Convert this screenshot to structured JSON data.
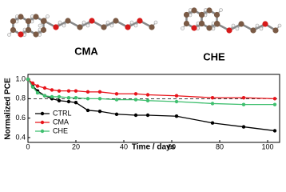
{
  "chart_data": {
    "type": "line",
    "x": [
      0,
      2,
      4,
      7,
      10,
      13,
      17,
      20,
      25,
      30,
      37,
      45,
      50,
      62,
      77,
      90,
      103
    ],
    "series": [
      {
        "name": "CTRL",
        "color": "#000000",
        "values": [
          1.0,
          0.93,
          0.88,
          0.83,
          0.8,
          0.78,
          0.77,
          0.76,
          0.68,
          0.67,
          0.64,
          0.63,
          0.63,
          0.62,
          0.55,
          0.51,
          0.47
        ]
      },
      {
        "name": "CMA",
        "color": "#e8141b",
        "values": [
          1.0,
          0.96,
          0.93,
          0.91,
          0.89,
          0.88,
          0.88,
          0.88,
          0.87,
          0.87,
          0.85,
          0.85,
          0.84,
          0.83,
          0.81,
          0.81,
          0.8
        ]
      },
      {
        "name": "CHE",
        "color": "#3fbf6f",
        "values": [
          1.0,
          0.92,
          0.86,
          0.83,
          0.82,
          0.82,
          0.81,
          0.81,
          0.8,
          0.8,
          0.79,
          0.79,
          0.78,
          0.77,
          0.75,
          0.74,
          0.74
        ]
      }
    ],
    "xlabel": "Time / days",
    "ylabel": "Normalized PCE",
    "xlim": [
      0,
      105
    ],
    "ylim": [
      0.35,
      1.05
    ],
    "xticks": [
      0,
      20,
      40,
      60,
      80,
      100
    ],
    "yticks": [
      {
        "value": 0.4,
        "label": "0.4"
      },
      {
        "value": 0.6,
        "label": "0.6"
      },
      {
        "value": 0.8,
        "label": "0.8"
      },
      {
        "value": 1.0,
        "label": "1.0"
      }
    ],
    "reference_line": 0.8,
    "legend": "lower left"
  },
  "molecules": [
    {
      "label": "CMA"
    },
    {
      "label": "CHE"
    }
  ]
}
